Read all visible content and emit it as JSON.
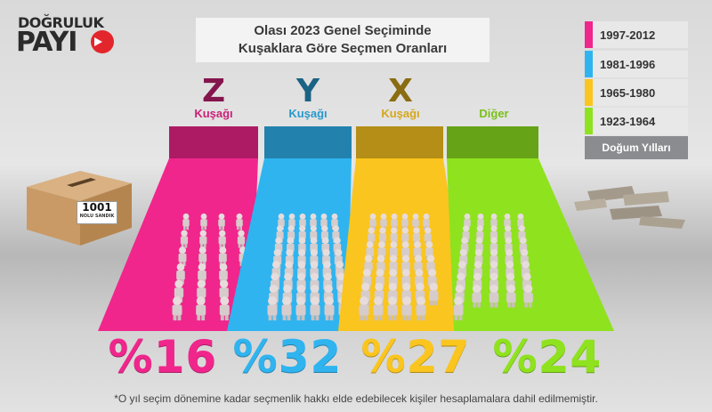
{
  "logo": {
    "line1": "DOĞRULUK",
    "line2": "PAYI"
  },
  "title": {
    "line1": "Olası 2023 Genel Seçiminde",
    "line2": "Kuşaklara Göre Seçmen Oranları"
  },
  "legend": {
    "items": [
      {
        "label": "1997-2012",
        "color": "#f0268c"
      },
      {
        "label": "1981-1996",
        "color": "#2fb4f0"
      },
      {
        "label": "1965-1980",
        "color": "#fac51e"
      },
      {
        "label": "1923-1964",
        "color": "#8fe21e"
      }
    ],
    "caption": "Doğum Yılları"
  },
  "ballot_box": {
    "number": "1001",
    "subtitle": "NOLU SANDIK"
  },
  "chart_data": {
    "type": "bar",
    "title": "Olası 2023 Genel Seçiminde Kuşaklara Göre Seçmen Oranları",
    "categories": [
      {
        "letter": "Z",
        "label": "Kuşağı",
        "color": "#f0268c",
        "value": 16,
        "display": "%16",
        "birth_years": "1997-2012"
      },
      {
        "letter": "Y",
        "label": "Kuşağı",
        "color": "#2fb4f0",
        "value": 32,
        "display": "%32",
        "birth_years": "1981-1996"
      },
      {
        "letter": "X",
        "label": "Kuşağı",
        "color": "#fac51e",
        "value": 27,
        "display": "%27",
        "birth_years": "1965-1980"
      },
      {
        "letter": "",
        "label": "Diğer",
        "color": "#8fe21e",
        "value": 24,
        "display": "%24",
        "birth_years": "1923-1964"
      }
    ],
    "unit": "%"
  },
  "footnote": "*O yıl seçim dönemine kadar seçmenlik hakkı elde edebilecek kişiler hesaplamalara dahil edilmemiştir."
}
